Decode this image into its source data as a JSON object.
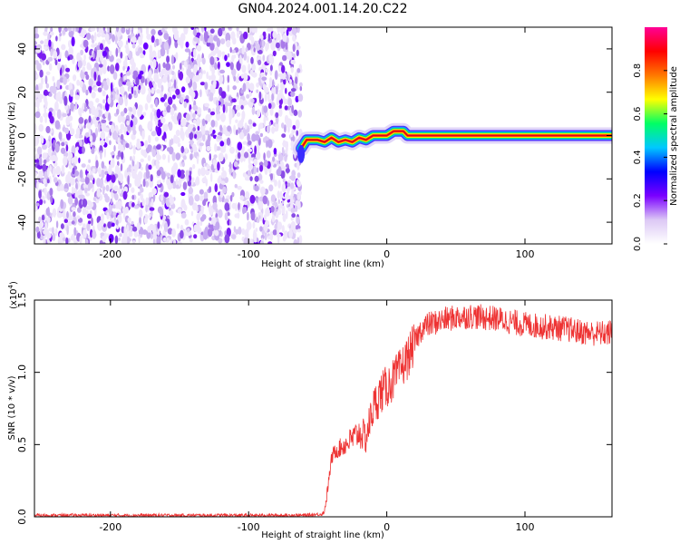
{
  "title": "GN04.2024.001.14.20.C22",
  "chart_data": [
    {
      "type": "heatmap",
      "xlabel": "Height of straight line (km)",
      "ylabel": "Frequency (Hz)",
      "xlim": [
        -255,
        163
      ],
      "ylim": [
        -50,
        50
      ],
      "x_ticks": [
        -200,
        -100,
        0,
        100
      ],
      "y_ticks": [
        40,
        20,
        0,
        -20,
        -40
      ],
      "noise_region_x": [
        -255,
        -62
      ],
      "signal_track": [
        {
          "x": -62,
          "y": -6
        },
        {
          "x": -58,
          "y": -2
        },
        {
          "x": -50,
          "y": -2
        },
        {
          "x": -45,
          "y": -3
        },
        {
          "x": -40,
          "y": -1
        },
        {
          "x": -35,
          "y": -3
        },
        {
          "x": -30,
          "y": -2
        },
        {
          "x": -25,
          "y": -3
        },
        {
          "x": -20,
          "y": -1
        },
        {
          "x": -15,
          "y": -2
        },
        {
          "x": -10,
          "y": 0
        },
        {
          "x": 0,
          "y": 0
        },
        {
          "x": 5,
          "y": 2
        },
        {
          "x": 12,
          "y": 2
        },
        {
          "x": 15,
          "y": 0
        },
        {
          "x": 163,
          "y": 0
        }
      ],
      "colorbar": {
        "label": "Normalized spectral amplitude",
        "ticks": [
          "0.0",
          "0.2",
          "0.4",
          "0.6",
          "0.8"
        ],
        "range": [
          0,
          1
        ],
        "colors": [
          "#ffffff",
          "#dcc8f5",
          "#7a00ff",
          "#0000ff",
          "#00c8ff",
          "#00ff64",
          "#ffff00",
          "#ff7800",
          "#ff0000",
          "#ff0096"
        ]
      }
    },
    {
      "type": "line",
      "xlabel": "Height of straight line (km)",
      "ylabel": "SNR (10 * v/v)",
      "multiplier_label": "(x10",
      "multiplier_exp": "4",
      "xlim": [
        -255,
        163
      ],
      "ylim": [
        0,
        1.5
      ],
      "x_ticks": [
        -200,
        -100,
        0,
        100
      ],
      "y_ticks": [
        "0.0",
        "0.5",
        "1.0",
        "1.5"
      ],
      "series": [
        {
          "color": "#ee3333",
          "x": [
            -255,
            -200,
            -150,
            -100,
            -60,
            -46,
            -44,
            -42,
            -40,
            -38,
            -30,
            -20,
            -15,
            -10,
            -5,
            0,
            5,
            10,
            15,
            20,
            25,
            30,
            40,
            50,
            60,
            70,
            80,
            90,
            100,
            110,
            120,
            130,
            140,
            150,
            160,
            163
          ],
          "y": [
            0.01,
            0.01,
            0.01,
            0.01,
            0.01,
            0.02,
            0.1,
            0.25,
            0.4,
            0.45,
            0.5,
            0.58,
            0.55,
            0.75,
            0.85,
            0.9,
            0.95,
            1.02,
            1.1,
            1.2,
            1.3,
            1.33,
            1.36,
            1.38,
            1.39,
            1.38,
            1.37,
            1.35,
            1.33,
            1.32,
            1.31,
            1.3,
            1.28,
            1.27,
            1.27,
            1.28
          ]
        }
      ]
    }
  ]
}
